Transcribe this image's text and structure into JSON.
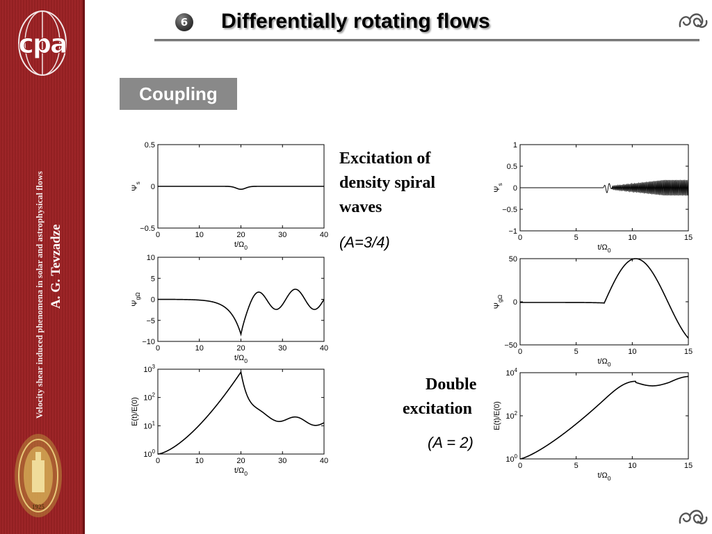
{
  "header": {
    "slide_number": "6",
    "title": "Differentially rotating flows"
  },
  "sidebar": {
    "logo_text": "cpa",
    "vertical_title": "Velocity shear induced phenomena in solar and astrophysical flows",
    "vertical_author": "A. G. Tevzadze",
    "seal_year": "1925"
  },
  "section_badge": "Coupling",
  "captions": {
    "spiral_line1": "Excitation of",
    "spiral_line2": "density spiral",
    "spiral_line3": "waves",
    "spiral_param": "(A=3/4)",
    "double_line1": "Double",
    "double_line2": "excitation",
    "double_param": "(A = 2)"
  },
  "colors": {
    "sidebar": "#9b2326",
    "badge": "#898989",
    "rule": "#777777"
  },
  "icons": {
    "top_corner": "ornament-icon",
    "bottom_corner": "ornament-icon"
  },
  "chart_data": [
    {
      "type": "line",
      "panel": "left-top",
      "xlabel": "t/Ω0",
      "ylabel": "Ψs",
      "xlim": [
        0,
        40
      ],
      "ylim": [
        -0.5,
        0.5
      ],
      "xticks": [
        "0",
        "10",
        "20",
        "30",
        "40"
      ],
      "yticks": [
        "0.5",
        "0",
        "−0.5"
      ]
    },
    {
      "type": "line",
      "panel": "left-middle",
      "xlabel": "t/Ω0",
      "ylabel": "ΨgΩ",
      "xlim": [
        0,
        40
      ],
      "ylim": [
        -10,
        10
      ],
      "xticks": [
        "0",
        "10",
        "20",
        "30",
        "40"
      ],
      "yticks": [
        "10",
        "5",
        "0",
        "−5",
        "−10"
      ]
    },
    {
      "type": "line",
      "panel": "left-bottom",
      "yscale": "log",
      "xlabel": "t/Ω0",
      "ylabel": "E(t)/E(0)",
      "xlim": [
        0,
        40
      ],
      "ylim": [
        1,
        1000
      ],
      "xticks": [
        "0",
        "10",
        "20",
        "30",
        "40"
      ],
      "yticks": [
        "10^3",
        "10^2",
        "10^1",
        "10^0"
      ]
    },
    {
      "type": "line",
      "panel": "right-top",
      "xlabel": "t/Ω0",
      "ylabel": "Ψs",
      "xlim": [
        0,
        15
      ],
      "ylim": [
        -1,
        1
      ],
      "xticks": [
        "0",
        "5",
        "10",
        "15"
      ],
      "yticks": [
        "1",
        "0.5",
        "0",
        "−0.5",
        "−1"
      ]
    },
    {
      "type": "line",
      "panel": "right-middle",
      "xlabel": "t/Ω0",
      "ylabel": "ΨgΩ",
      "xlim": [
        0,
        15
      ],
      "ylim": [
        -50,
        50
      ],
      "xticks": [
        "0",
        "5",
        "10",
        "15"
      ],
      "yticks": [
        "50",
        "0",
        "−50"
      ]
    },
    {
      "type": "line",
      "panel": "right-bottom",
      "yscale": "log",
      "xlabel": "t/Ω0",
      "ylabel": "E(t)/E(0)",
      "xlim": [
        0,
        15
      ],
      "ylim": [
        1,
        10000
      ],
      "xticks": [
        "0",
        "5",
        "10",
        "15"
      ],
      "yticks": [
        "10^4",
        "10^2",
        "10^0"
      ]
    }
  ]
}
